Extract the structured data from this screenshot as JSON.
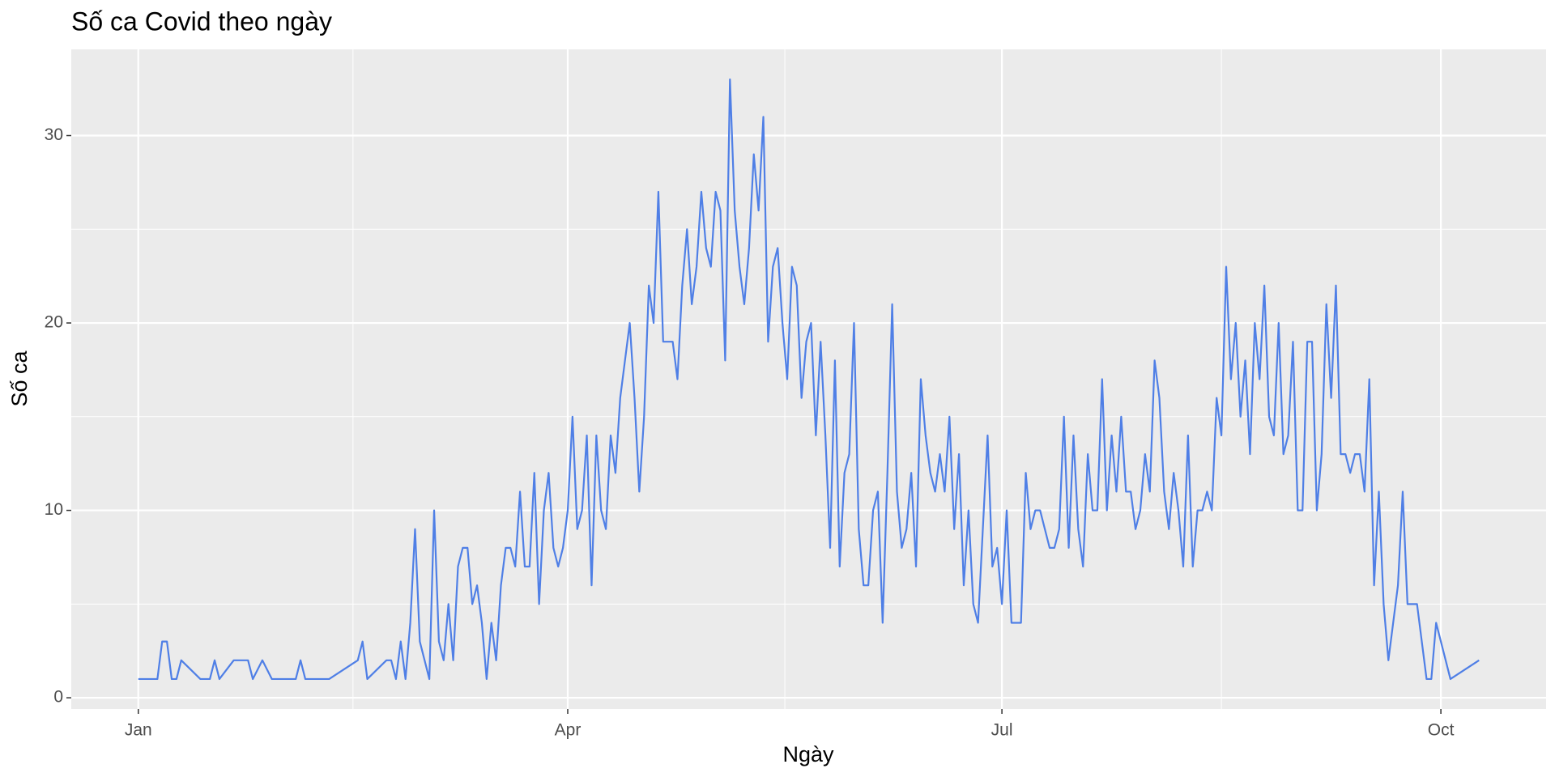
{
  "chart_data": {
    "type": "line",
    "title": "Số ca Covid theo ngày",
    "x_label": "Ngày",
    "y_label": "Số ca",
    "x": [
      0,
      4,
      5,
      6,
      7,
      8,
      9,
      13,
      15,
      16,
      17,
      20,
      23,
      24,
      26,
      28,
      33,
      34,
      35,
      40,
      46,
      47,
      48,
      52,
      53,
      54,
      55,
      56,
      57,
      58,
      59,
      61,
      62,
      63,
      64,
      65,
      66,
      67,
      68,
      69,
      70,
      71,
      72,
      73,
      74,
      75,
      76,
      77,
      78,
      79,
      80,
      81,
      82,
      83,
      84,
      85,
      86,
      87,
      88,
      89,
      90,
      91,
      92,
      93,
      94,
      95,
      96,
      97,
      98,
      99,
      100,
      101,
      103,
      104,
      105,
      106,
      107,
      108,
      109,
      110,
      112,
      113,
      114,
      115,
      116,
      117,
      118,
      119,
      120,
      121,
      122,
      123,
      124,
      125,
      126,
      127,
      128,
      129,
      130,
      131,
      132,
      133,
      134,
      135,
      136,
      137,
      138,
      139,
      140,
      141,
      142,
      143,
      144,
      145,
      146,
      147,
      148,
      149,
      150,
      151,
      152,
      153,
      154,
      155,
      156,
      157,
      158,
      159,
      160,
      161,
      162,
      163,
      164,
      165,
      166,
      167,
      168,
      169,
      170,
      171,
      172,
      173,
      174,
      175,
      176,
      177,
      178,
      179,
      180,
      181,
      182,
      183,
      185,
      186,
      187,
      188,
      189,
      191,
      192,
      193,
      194,
      195,
      196,
      197,
      198,
      199,
      200,
      201,
      202,
      203,
      204,
      205,
      206,
      207,
      208,
      209,
      210,
      211,
      212,
      213,
      214,
      215,
      216,
      217,
      218,
      219,
      220,
      221,
      222,
      223,
      224,
      225,
      226,
      227,
      228,
      229,
      230,
      231,
      232,
      233,
      234,
      235,
      236,
      237,
      238,
      239,
      240,
      241,
      242,
      243,
      244,
      245,
      246,
      247,
      248,
      249,
      250,
      251,
      252,
      253,
      254,
      255,
      256,
      257,
      258,
      259,
      260,
      261,
      262,
      264,
      265,
      266,
      268,
      270,
      271,
      272,
      275,
      281
    ],
    "values": [
      1,
      1,
      3,
      3,
      1,
      1,
      2,
      1,
      1,
      2,
      1,
      2,
      2,
      1,
      2,
      1,
      1,
      2,
      1,
      1,
      2,
      3,
      1,
      2,
      2,
      1,
      3,
      1,
      4,
      9,
      3,
      1,
      10,
      3,
      2,
      5,
      2,
      7,
      8,
      8,
      5,
      6,
      4,
      1,
      4,
      2,
      6,
      8,
      8,
      7,
      11,
      7,
      7,
      12,
      5,
      10,
      12,
      8,
      7,
      8,
      10,
      15,
      9,
      10,
      14,
      6,
      14,
      10,
      9,
      14,
      12,
      16,
      20,
      16,
      11,
      15,
      22,
      20,
      27,
      19,
      19,
      17,
      22,
      25,
      21,
      23,
      27,
      24,
      23,
      27,
      26,
      18,
      33,
      26,
      23,
      21,
      24,
      29,
      26,
      31,
      19,
      23,
      24,
      20,
      17,
      23,
      22,
      16,
      19,
      20,
      14,
      19,
      14,
      8,
      18,
      7,
      12,
      13,
      20,
      9,
      6,
      6,
      10,
      11,
      4,
      12,
      21,
      11,
      8,
      9,
      12,
      7,
      17,
      14,
      12,
      11,
      13,
      11,
      15,
      9,
      13,
      6,
      10,
      5,
      4,
      9,
      14,
      7,
      8,
      5,
      10,
      4,
      4,
      12,
      9,
      10,
      10,
      8,
      8,
      9,
      15,
      8,
      14,
      9,
      7,
      13,
      10,
      10,
      17,
      10,
      14,
      11,
      15,
      11,
      11,
      9,
      10,
      13,
      11,
      18,
      16,
      11,
      9,
      12,
      10,
      7,
      14,
      7,
      10,
      10,
      11,
      10,
      16,
      14,
      23,
      17,
      20,
      15,
      18,
      13,
      20,
      17,
      22,
      15,
      14,
      20,
      13,
      14,
      19,
      10,
      10,
      19,
      19,
      10,
      13,
      21,
      16,
      22,
      13,
      13,
      12,
      13,
      13,
      11,
      17,
      6,
      11,
      5,
      2,
      6,
      11,
      5,
      5,
      1,
      1,
      4,
      1,
      2
    ],
    "color": "#4f7fe6",
    "xlim": [
      -14.05,
      295.05
    ],
    "xticks": [
      {
        "value": 0,
        "label": "Jan"
      },
      {
        "value": 90,
        "label": "Apr"
      },
      {
        "value": 181,
        "label": "Jul"
      },
      {
        "value": 273,
        "label": "Oct"
      }
    ],
    "xminor": [
      45,
      135.5,
      227
    ],
    "ylim": [
      -0.6,
      34.6
    ],
    "yticks": [
      0,
      10,
      20,
      30
    ],
    "yminor": [
      5,
      15,
      25
    ],
    "grid": true
  }
}
